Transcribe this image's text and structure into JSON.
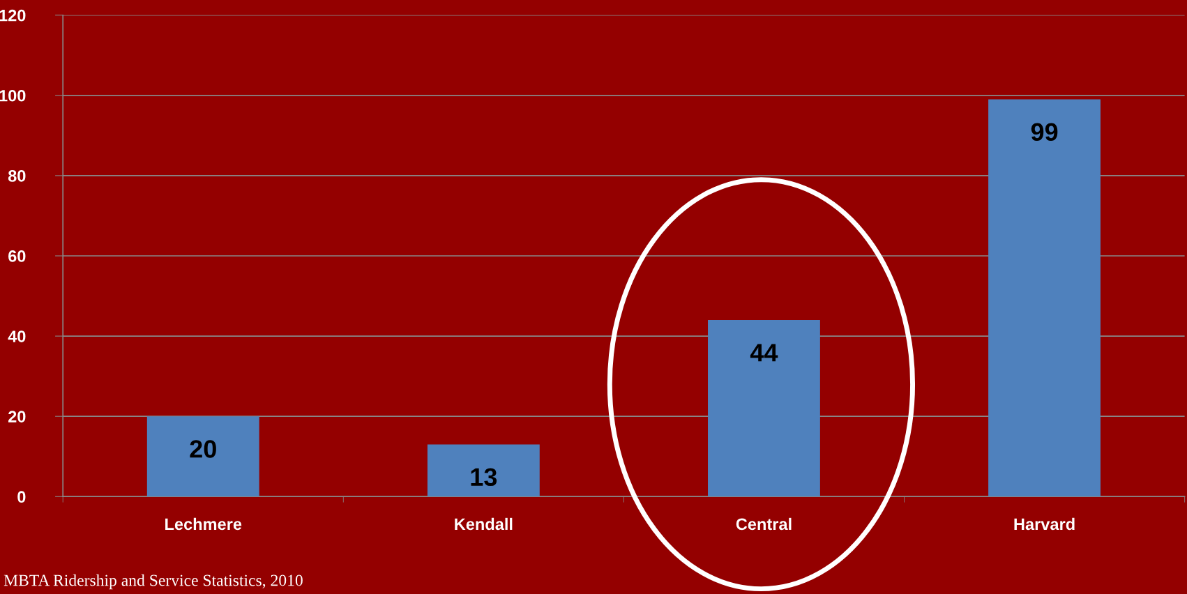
{
  "chart_data": {
    "type": "bar",
    "categories": [
      "Lechmere",
      "Kendall",
      "Central",
      "Harvard"
    ],
    "values": [
      20,
      13,
      44,
      99
    ],
    "color": "#4f81bd",
    "ylim": [
      0,
      120
    ],
    "yticks": [
      0,
      20,
      40,
      60,
      80,
      100,
      120
    ],
    "grid": "y",
    "data_labels": true,
    "annotations": [
      "MBTA Ridership and Service Statistics, 2010"
    ]
  }
}
